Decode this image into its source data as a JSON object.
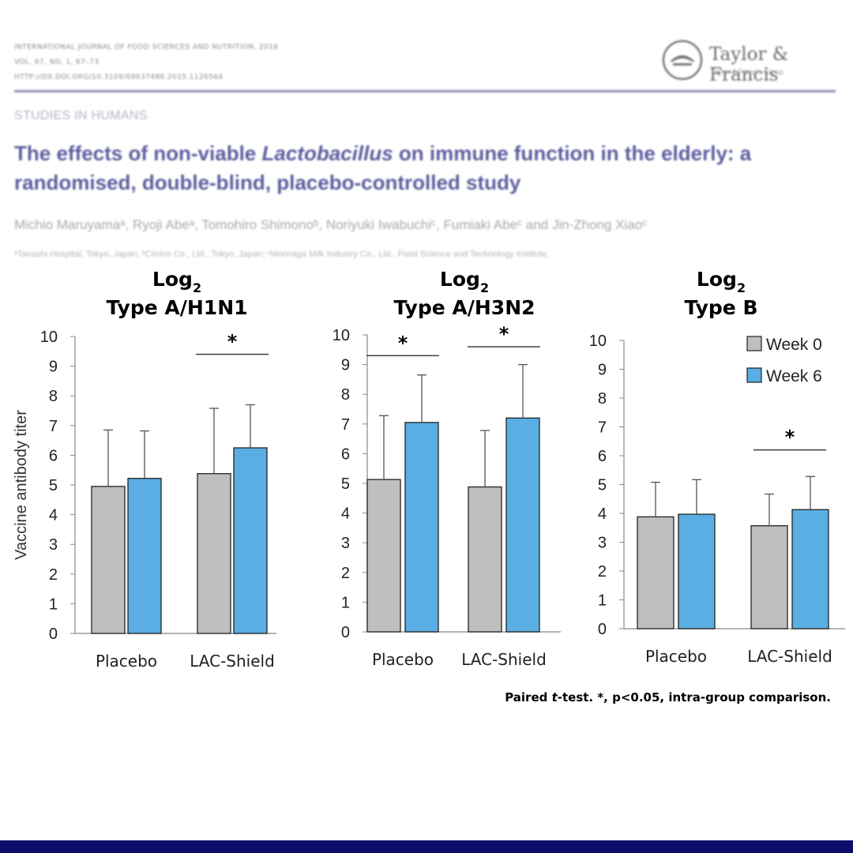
{
  "header": {
    "journal": "INTERNATIONAL JOURNAL OF FOOD SCIENCES AND NUTRITION, 2016",
    "volume": "VOL. 67, NO. 1, 67–73",
    "doi": "HTTP://DX.DOI.ORG/10.3109/09637486.2015.1126564",
    "publisher": "Taylor & Francis",
    "publisher_sub": "Taylor & Francis Group",
    "section": "STUDIES IN HUMANS",
    "title_pre": "The effects of non-viable ",
    "title_italic": "Lactobacillus",
    "title_post": " on immune function in the elderly: a randomised, double-blind, placebo-controlled study",
    "authors": "Michio Maruyamaᵃ, Ryoji Abeᵃ, Tomohiro Shimonoᵇ, Noriyuki Iwabuchiᶜ, Fumiaki Abeᶜ and Jin-Zhong Xiaoᶜ",
    "affiliations": "ᵃTanashi Hospital, Tokyo, Japan; ᵇClinico Co., Ltd., Tokyo, Japan; ᶜMorinaga Milk Industry Co., Ltd., Food Science and Technology Institute,"
  },
  "colors": {
    "week0": "#bfbfbf",
    "week6": "#5aaee3",
    "header_rule": "#8f8fb5",
    "bottom_bar": "#0d0d6b"
  },
  "chart_data": [
    {
      "type": "bar",
      "title_line1": "Log",
      "title_sub": "2",
      "title_line2": "Type A/H1N1",
      "ylabel": "Vaccine antibody titer",
      "ylim": [
        0,
        10
      ],
      "yticks": [
        "0",
        "1",
        "2",
        "3",
        "4",
        "5",
        "6",
        "7",
        "8",
        "9",
        "10"
      ],
      "categories": [
        "Placebo",
        "LAC-Shield"
      ],
      "series": [
        {
          "name": "Week 0",
          "values": [
            4.95,
            5.38
          ],
          "errors": [
            1.9,
            2.2
          ]
        },
        {
          "name": "Week 6",
          "values": [
            5.22,
            6.25
          ],
          "errors": [
            1.6,
            1.45
          ]
        }
      ],
      "significance": [
        {
          "category": 1,
          "label": "*",
          "y": 9.4
        }
      ],
      "show_legend": false
    },
    {
      "type": "bar",
      "title_line1": "Log",
      "title_sub": "2",
      "title_line2": "Type A/H3N2",
      "ylabel": "",
      "ylim": [
        0,
        10
      ],
      "yticks": [
        "0",
        "1",
        "2",
        "3",
        "4",
        "5",
        "6",
        "7",
        "8",
        "9",
        "10"
      ],
      "categories": [
        "Placebo",
        "LAC-Shield"
      ],
      "series": [
        {
          "name": "Week 0",
          "values": [
            5.13,
            4.88
          ],
          "errors": [
            2.15,
            1.9
          ]
        },
        {
          "name": "Week 6",
          "values": [
            7.05,
            7.2
          ],
          "errors": [
            1.6,
            1.8
          ]
        }
      ],
      "significance": [
        {
          "category": 0,
          "label": "*",
          "y": 9.3
        },
        {
          "category": 1,
          "label": "*",
          "y": 9.6
        }
      ],
      "show_legend": false
    },
    {
      "type": "bar",
      "title_line1": "Log",
      "title_sub": "2",
      "title_line2": "Type B",
      "ylabel": "",
      "ylim": [
        0,
        10
      ],
      "yticks": [
        "0",
        "1",
        "2",
        "3",
        "4",
        "5",
        "6",
        "7",
        "8",
        "9",
        "10"
      ],
      "categories": [
        "Placebo",
        "LAC-Shield"
      ],
      "series": [
        {
          "name": "Week 0",
          "values": [
            3.88,
            3.57
          ],
          "errors": [
            1.2,
            1.1
          ]
        },
        {
          "name": "Week 6",
          "values": [
            3.97,
            4.13
          ],
          "errors": [
            1.2,
            1.15
          ]
        }
      ],
      "significance": [
        {
          "category": 1,
          "label": "*",
          "y": 6.2
        }
      ],
      "show_legend": true,
      "legend_position": "top-right"
    }
  ],
  "footnote": {
    "pre": "Paired ",
    "italic": "t",
    "post": "-test. *, p<0.05, intra-group comparison."
  }
}
